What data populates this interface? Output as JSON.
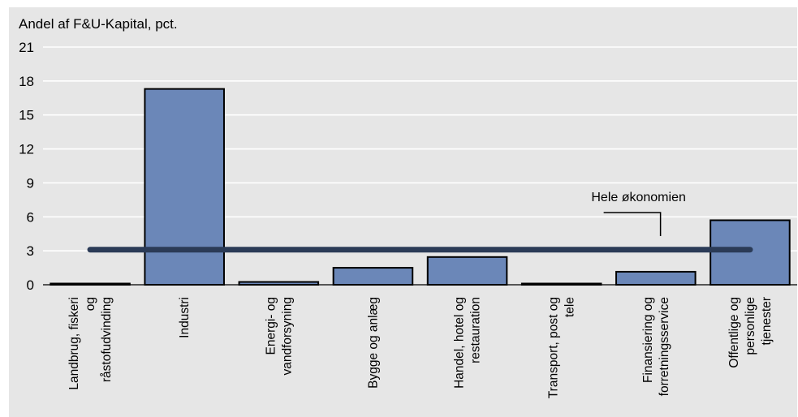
{
  "chart_data": {
    "type": "bar",
    "title": "Andel af F&U-Kapital, pct.",
    "categories": [
      [
        "Landbrug, fiskeri",
        "og",
        "råstofudvinding"
      ],
      [
        "Industri"
      ],
      [
        "Energi- og",
        "vandforsyning"
      ],
      [
        "Bygge og anlæg"
      ],
      [
        "Handel, hotel og",
        "restauration"
      ],
      [
        "Transport, post og",
        "tele"
      ],
      [
        "Finansiering og",
        "forretningsservice"
      ],
      [
        "Offentlige og",
        "personlige",
        "tjenester"
      ]
    ],
    "values": [
      0.1,
      17.3,
      0.25,
      1.5,
      2.45,
      0.1,
      1.15,
      5.7
    ],
    "reference_line": {
      "value": 3.1,
      "label": "Hele økonomien"
    },
    "ylim": [
      0,
      21
    ],
    "yticks": [
      0,
      3,
      6,
      9,
      12,
      15,
      18,
      21
    ],
    "grid": true,
    "colors": {
      "bar_fill": "#6b87b8",
      "bar_stroke": "#000000",
      "reference_line": "#2b3b57",
      "plot_background": "#e6e6e6",
      "gridline": "#ffffff",
      "page_background": "#ffffff"
    }
  }
}
